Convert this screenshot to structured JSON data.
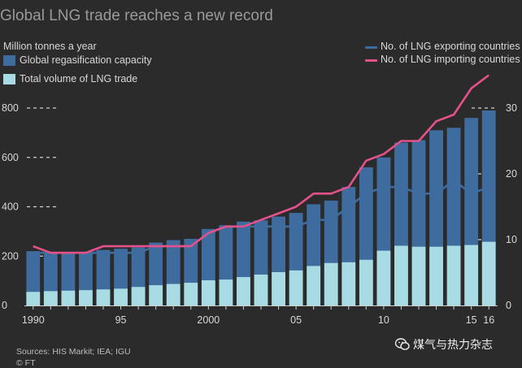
{
  "title": "Global LNG trade reaches a new record",
  "unit_label": "Million tonnes a year",
  "legend": {
    "capacity": "Global regasification capacity",
    "volume": "Total volume of LNG trade",
    "exporting": "No. of LNG exporting countries",
    "importing": "No. of LNG importing countries"
  },
  "colors": {
    "background": "#2b2b2c",
    "capacity": "#3f6c9e",
    "volume": "#a8dbe4",
    "exporting": "#3f6c9e",
    "importing": "#e5518a"
  },
  "footer": {
    "sources": "Sources: HIS Markit; IEA; IGU",
    "credit": "© FT"
  },
  "watermark": "煤气与热力杂志",
  "chart_data": {
    "type": "bar",
    "x": [
      1990,
      1991,
      1992,
      1993,
      1994,
      1995,
      1996,
      1997,
      1998,
      1999,
      2000,
      2001,
      2002,
      2003,
      2004,
      2005,
      2006,
      2007,
      2008,
      2009,
      2010,
      2011,
      2012,
      2013,
      2014,
      2015,
      2016
    ],
    "x_tick_labels": [
      "1990",
      "95",
      "2000",
      "05",
      "10",
      "15",
      "16"
    ],
    "x_tick_years": [
      1990,
      1995,
      2000,
      2005,
      2010,
      2015,
      2016
    ],
    "y_left": {
      "label": "Million tonnes a year",
      "range": [
        0,
        800
      ],
      "ticks": [
        0,
        200,
        400,
        600,
        800
      ]
    },
    "y_right": {
      "range": [
        0,
        30
      ],
      "ticks": [
        0,
        10,
        20,
        30
      ]
    },
    "series": [
      {
        "name": "Global regasification capacity",
        "kind": "bar",
        "axis": "left",
        "values": [
          220,
          215,
          215,
          215,
          225,
          230,
          235,
          255,
          265,
          270,
          310,
          325,
          340,
          345,
          360,
          375,
          410,
          425,
          480,
          560,
          600,
          660,
          670,
          710,
          720,
          760,
          790
        ]
      },
      {
        "name": "Total volume of LNG trade",
        "kind": "bar",
        "axis": "left",
        "values": [
          55,
          58,
          60,
          62,
          65,
          68,
          75,
          82,
          87,
          92,
          102,
          105,
          115,
          125,
          135,
          142,
          160,
          172,
          175,
          185,
          222,
          242,
          238,
          238,
          242,
          245,
          258
        ]
      },
      {
        "name": "No. of LNG exporting countries",
        "kind": "line",
        "axis": "right",
        "values": [
          8,
          8,
          8,
          8,
          8,
          8,
          8,
          9,
          9,
          9,
          11,
          12,
          12,
          12,
          12,
          12,
          13,
          13,
          15,
          17,
          18,
          18,
          17,
          17,
          19,
          17,
          18
        ]
      },
      {
        "name": "No. of LNG importing countries",
        "kind": "line",
        "axis": "right",
        "values": [
          9,
          8,
          8,
          8,
          9,
          9,
          9,
          9,
          9,
          9,
          11,
          12,
          12,
          13,
          14,
          15,
          17,
          17,
          18,
          22,
          23,
          25,
          25,
          28,
          29,
          33,
          35
        ]
      }
    ]
  }
}
